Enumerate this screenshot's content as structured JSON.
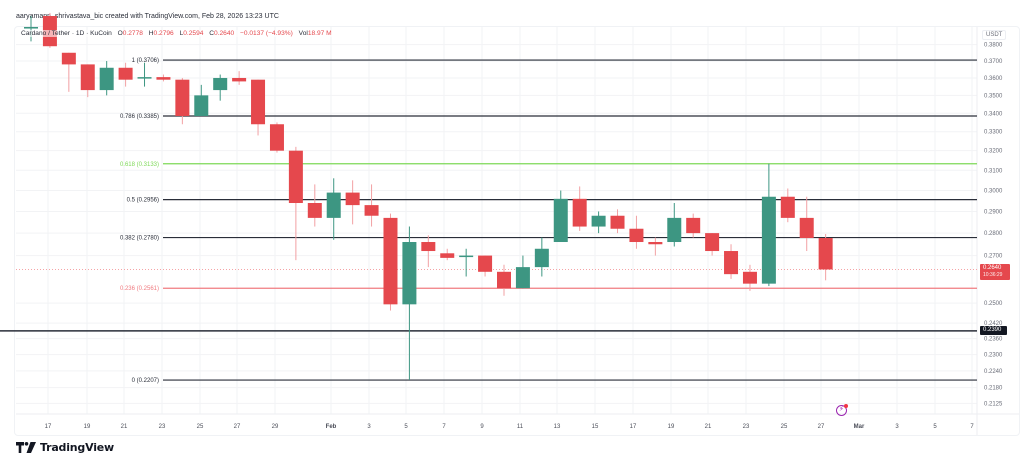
{
  "credit": "aaryamann_shrivastava_bic created with TradingView.com, Feb 28, 2026 13:23 UTC",
  "legend": {
    "symbol": "Cardano / Tether · 1D · KuCoin",
    "open_label": "O",
    "open": "0.2778",
    "high_label": "H",
    "high": "0.2796",
    "low_label": "L",
    "low": "0.2594",
    "close_label": "C",
    "close": "0.2640",
    "change": "−0.0137 (−4.93%)",
    "vol_label": "Vol",
    "vol": "18.97 M"
  },
  "axis_unit": "USDT",
  "current_price_tag": {
    "price": "0.2640",
    "countdown": "10:36:29"
  },
  "line_price_tag": "0.2390",
  "brand": "TradingView",
  "colors": {
    "up": "#3d9682",
    "down": "#e5484d",
    "fib_green": "#7ed957",
    "fib_red": "#f07b80",
    "fib_black": "#2a2e39",
    "grid": "#f2f3f5"
  },
  "chart_data": {
    "type": "candlestick",
    "title": "Cardano / Tether · 1D · KuCoin",
    "xlabel": "",
    "ylabel": "USDT",
    "scale": "log",
    "ylim": [
      0.21,
      0.385
    ],
    "grid": true,
    "y_ticks": [
      "0.3800",
      "0.3700",
      "0.3600",
      "0.3500",
      "0.3400",
      "0.3300",
      "0.3200",
      "0.3100",
      "0.3000",
      "0.2900",
      "0.2800",
      "0.2700",
      "0.2500",
      "0.2420",
      "0.2360",
      "0.2300",
      "0.2240",
      "0.2180",
      "0.2125"
    ],
    "x_ticks": [
      {
        "label": "17",
        "x": 48
      },
      {
        "label": "19",
        "x": 87
      },
      {
        "label": "21",
        "x": 124
      },
      {
        "label": "23",
        "x": 162
      },
      {
        "label": "25",
        "x": 200
      },
      {
        "label": "27",
        "x": 237
      },
      {
        "label": "29",
        "x": 275
      },
      {
        "label": "Feb",
        "x": 331
      },
      {
        "label": "3",
        "x": 369
      },
      {
        "label": "5",
        "x": 406
      },
      {
        "label": "7",
        "x": 444
      },
      {
        "label": "9",
        "x": 482
      },
      {
        "label": "11",
        "x": 520
      },
      {
        "label": "13",
        "x": 557
      },
      {
        "label": "15",
        "x": 595
      },
      {
        "label": "17",
        "x": 633
      },
      {
        "label": "19",
        "x": 671
      },
      {
        "label": "21",
        "x": 708
      },
      {
        "label": "23",
        "x": 746
      },
      {
        "label": "25",
        "x": 784
      },
      {
        "label": "27",
        "x": 821
      },
      {
        "label": "Mar",
        "x": 859
      },
      {
        "label": "3",
        "x": 897
      },
      {
        "label": "5",
        "x": 935
      },
      {
        "label": "7",
        "x": 972
      }
    ],
    "fib_levels": [
      {
        "ratio": "1",
        "price": 0.3706,
        "label": "1 (0.3706)",
        "color": "black"
      },
      {
        "ratio": "0.786",
        "price": 0.3385,
        "label": "0.786 (0.3385)",
        "color": "black"
      },
      {
        "ratio": "0.618",
        "price": 0.3133,
        "label": "0.618 (0.3133)",
        "color": "green"
      },
      {
        "ratio": "0.5",
        "price": 0.2956,
        "label": "0.5 (0.2956)",
        "color": "black"
      },
      {
        "ratio": "0.382",
        "price": 0.278,
        "label": "0.382 (0.2780)",
        "color": "black"
      },
      {
        "ratio": "0.236",
        "price": 0.2561,
        "label": "0.236 (0.2561)",
        "color": "red"
      },
      {
        "ratio": "0",
        "price": 0.2207,
        "label": "0 (0.2207)",
        "color": "black"
      }
    ],
    "horizontal_line": {
      "price": 0.239,
      "label": "0.2390"
    },
    "current_price": 0.264,
    "candles": [
      {
        "date": "Jan 16",
        "o": 0.39,
        "h": 0.398,
        "l": 0.382,
        "c": 0.391
      },
      {
        "date": "Jan 17",
        "o": 0.398,
        "h": 0.4,
        "l": 0.378,
        "c": 0.379
      },
      {
        "date": "Jan 18",
        "o": 0.375,
        "h": 0.375,
        "l": 0.352,
        "c": 0.368
      },
      {
        "date": "Jan 19",
        "o": 0.368,
        "h": 0.368,
        "l": 0.349,
        "c": 0.353
      },
      {
        "date": "Jan 20",
        "o": 0.353,
        "h": 0.37,
        "l": 0.35,
        "c": 0.366
      },
      {
        "date": "Jan 21",
        "o": 0.366,
        "h": 0.369,
        "l": 0.355,
        "c": 0.359
      },
      {
        "date": "Jan 22",
        "o": 0.36,
        "h": 0.369,
        "l": 0.355,
        "c": 0.3605
      },
      {
        "date": "Jan 23",
        "o": 0.3605,
        "h": 0.362,
        "l": 0.358,
        "c": 0.359
      },
      {
        "date": "Jan 24",
        "o": 0.359,
        "h": 0.36,
        "l": 0.334,
        "c": 0.3385
      },
      {
        "date": "Jan 25",
        "o": 0.3385,
        "h": 0.356,
        "l": 0.3385,
        "c": 0.35
      },
      {
        "date": "Jan 26",
        "o": 0.353,
        "h": 0.362,
        "l": 0.347,
        "c": 0.36
      },
      {
        "date": "Jan 27",
        "o": 0.36,
        "h": 0.364,
        "l": 0.356,
        "c": 0.358
      },
      {
        "date": "Jan 28",
        "o": 0.359,
        "h": 0.359,
        "l": 0.328,
        "c": 0.334
      },
      {
        "date": "Jan 29",
        "o": 0.334,
        "h": 0.335,
        "l": 0.319,
        "c": 0.32
      },
      {
        "date": "Jan 30",
        "o": 0.32,
        "h": 0.322,
        "l": 0.268,
        "c": 0.294
      },
      {
        "date": "Jan 31",
        "o": 0.294,
        "h": 0.303,
        "l": 0.283,
        "c": 0.287
      },
      {
        "date": "Feb 1",
        "o": 0.287,
        "h": 0.306,
        "l": 0.277,
        "c": 0.299
      },
      {
        "date": "Feb 2",
        "o": 0.299,
        "h": 0.305,
        "l": 0.284,
        "c": 0.293
      },
      {
        "date": "Feb 3",
        "o": 0.293,
        "h": 0.303,
        "l": 0.283,
        "c": 0.288
      },
      {
        "date": "Feb 4",
        "o": 0.287,
        "h": 0.289,
        "l": 0.247,
        "c": 0.2495
      },
      {
        "date": "Feb 5",
        "o": 0.2495,
        "h": 0.283,
        "l": 0.2207,
        "c": 0.276
      },
      {
        "date": "Feb 6",
        "o": 0.276,
        "h": 0.279,
        "l": 0.265,
        "c": 0.272
      },
      {
        "date": "Feb 7",
        "o": 0.271,
        "h": 0.273,
        "l": 0.268,
        "c": 0.269
      },
      {
        "date": "Feb 8",
        "o": 0.27,
        "h": 0.273,
        "l": 0.261,
        "c": 0.27
      },
      {
        "date": "Feb 9",
        "o": 0.27,
        "h": 0.27,
        "l": 0.261,
        "c": 0.263
      },
      {
        "date": "Feb 10",
        "o": 0.263,
        "h": 0.266,
        "l": 0.253,
        "c": 0.2561
      },
      {
        "date": "Feb 11",
        "o": 0.2561,
        "h": 0.27,
        "l": 0.2561,
        "c": 0.265
      },
      {
        "date": "Feb 12",
        "o": 0.265,
        "h": 0.278,
        "l": 0.261,
        "c": 0.273
      },
      {
        "date": "Feb 13",
        "o": 0.276,
        "h": 0.3,
        "l": 0.276,
        "c": 0.296
      },
      {
        "date": "Feb 14",
        "o": 0.296,
        "h": 0.302,
        "l": 0.281,
        "c": 0.283
      },
      {
        "date": "Feb 15",
        "o": 0.283,
        "h": 0.29,
        "l": 0.28,
        "c": 0.288
      },
      {
        "date": "Feb 16",
        "o": 0.288,
        "h": 0.291,
        "l": 0.28,
        "c": 0.282
      },
      {
        "date": "Feb 17",
        "o": 0.282,
        "h": 0.288,
        "l": 0.273,
        "c": 0.276
      },
      {
        "date": "Feb 18",
        "o": 0.276,
        "h": 0.278,
        "l": 0.27,
        "c": 0.275
      },
      {
        "date": "Feb 19",
        "o": 0.276,
        "h": 0.294,
        "l": 0.274,
        "c": 0.287
      },
      {
        "date": "Feb 20",
        "o": 0.287,
        "h": 0.289,
        "l": 0.278,
        "c": 0.28
      },
      {
        "date": "Feb 21",
        "o": 0.28,
        "h": 0.28,
        "l": 0.27,
        "c": 0.272
      },
      {
        "date": "Feb 22",
        "o": 0.272,
        "h": 0.275,
        "l": 0.26,
        "c": 0.262
      },
      {
        "date": "Feb 23",
        "o": 0.263,
        "h": 0.266,
        "l": 0.255,
        "c": 0.258
      },
      {
        "date": "Feb 24",
        "o": 0.258,
        "h": 0.3133,
        "l": 0.257,
        "c": 0.297
      },
      {
        "date": "Feb 25",
        "o": 0.297,
        "h": 0.301,
        "l": 0.285,
        "c": 0.287
      },
      {
        "date": "Feb 26",
        "o": 0.287,
        "h": 0.297,
        "l": 0.272,
        "c": 0.2778
      },
      {
        "date": "Feb 27",
        "o": 0.2778,
        "h": 0.2796,
        "l": 0.2594,
        "c": 0.264
      }
    ]
  }
}
